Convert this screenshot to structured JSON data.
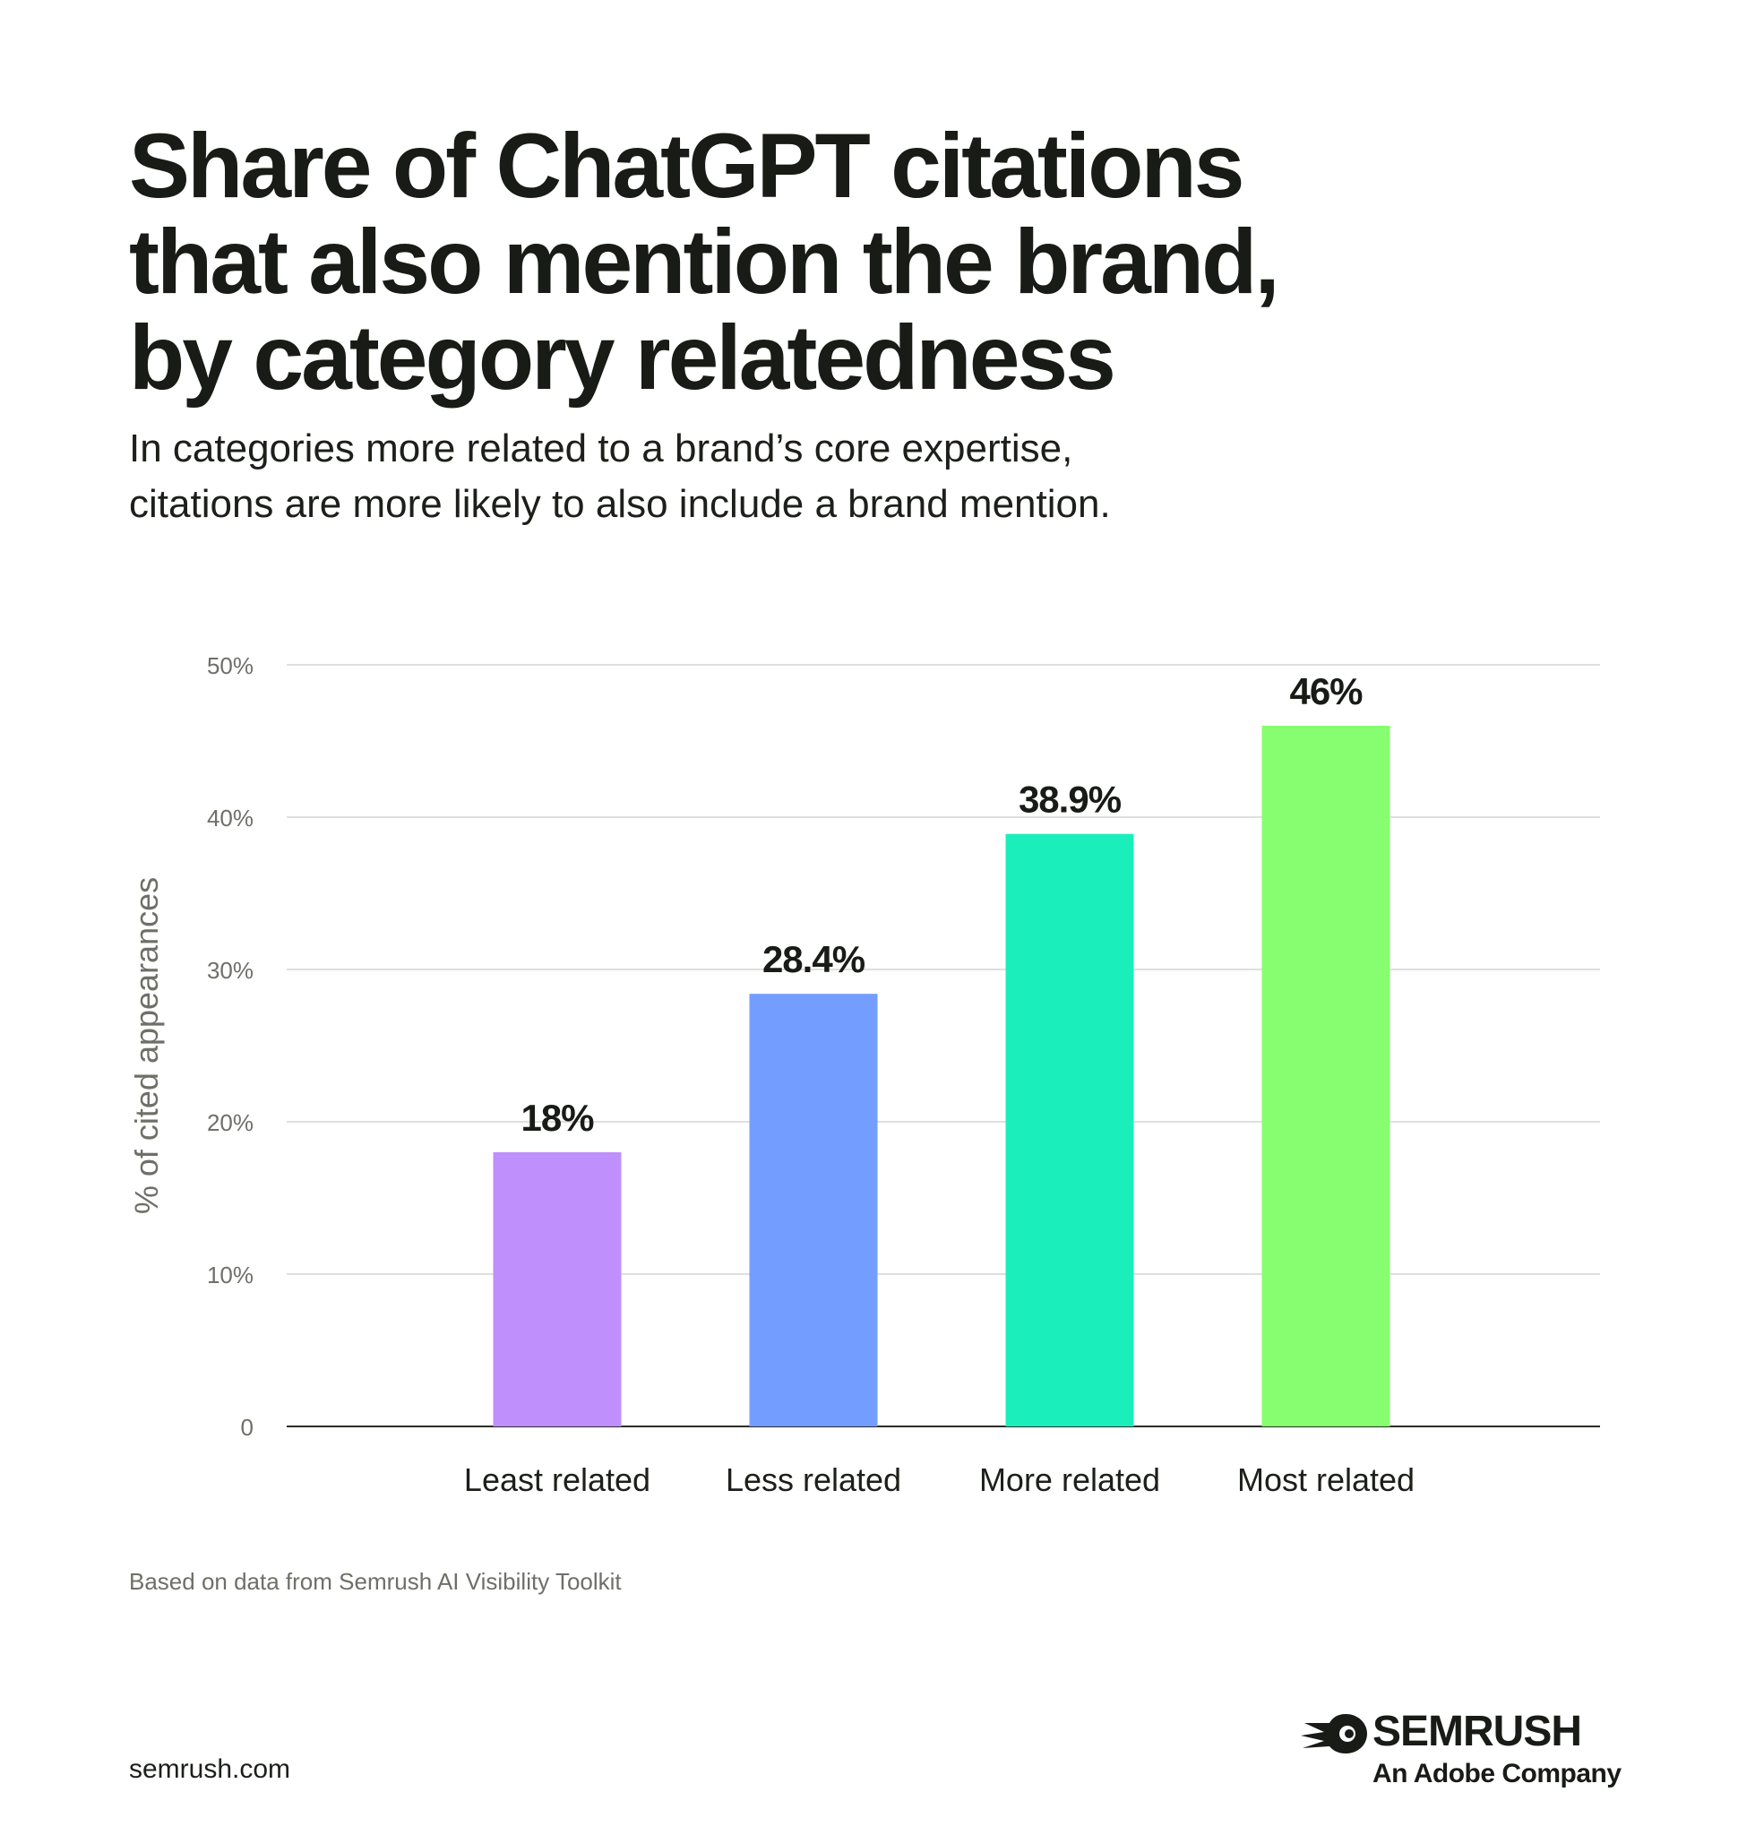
{
  "header": {
    "title_lines": [
      "Share of ChatGPT citations",
      "that also mention the brand,",
      "by category relatedness"
    ],
    "subtitle_lines": [
      "In categories more related to a brand’s core expertise,",
      "citations are more likely to also include a brand mention."
    ]
  },
  "chart_data": {
    "type": "bar",
    "title": "Share of ChatGPT citations that also mention the brand, by category relatedness",
    "categories": [
      "Least related",
      "Less related",
      "More related",
      "Most related"
    ],
    "values": [
      18,
      28.4,
      38.9,
      46
    ],
    "data_labels": [
      "18%",
      "28.4%",
      "38.9%",
      "46%"
    ],
    "colors": [
      "#bf8ffb",
      "#739dff",
      "#1aefbc",
      "#86fe6f"
    ],
    "xlabel": "",
    "ylabel": "% of cited appearances",
    "ylim": [
      0,
      50
    ],
    "yticks": [
      0,
      10,
      20,
      30,
      40,
      50
    ],
    "ytick_labels": [
      "0",
      "10%",
      "20%",
      "30%",
      "40%",
      "50%"
    ],
    "grid": true,
    "legend": "none"
  },
  "footer": {
    "source": "Based on data from Semrush AI Visibility Toolkit",
    "site": "semrush.com",
    "brand": "SEMRUSH",
    "tagline": "An Adobe Company",
    "logo_icon": "semrush-fireball-icon"
  }
}
